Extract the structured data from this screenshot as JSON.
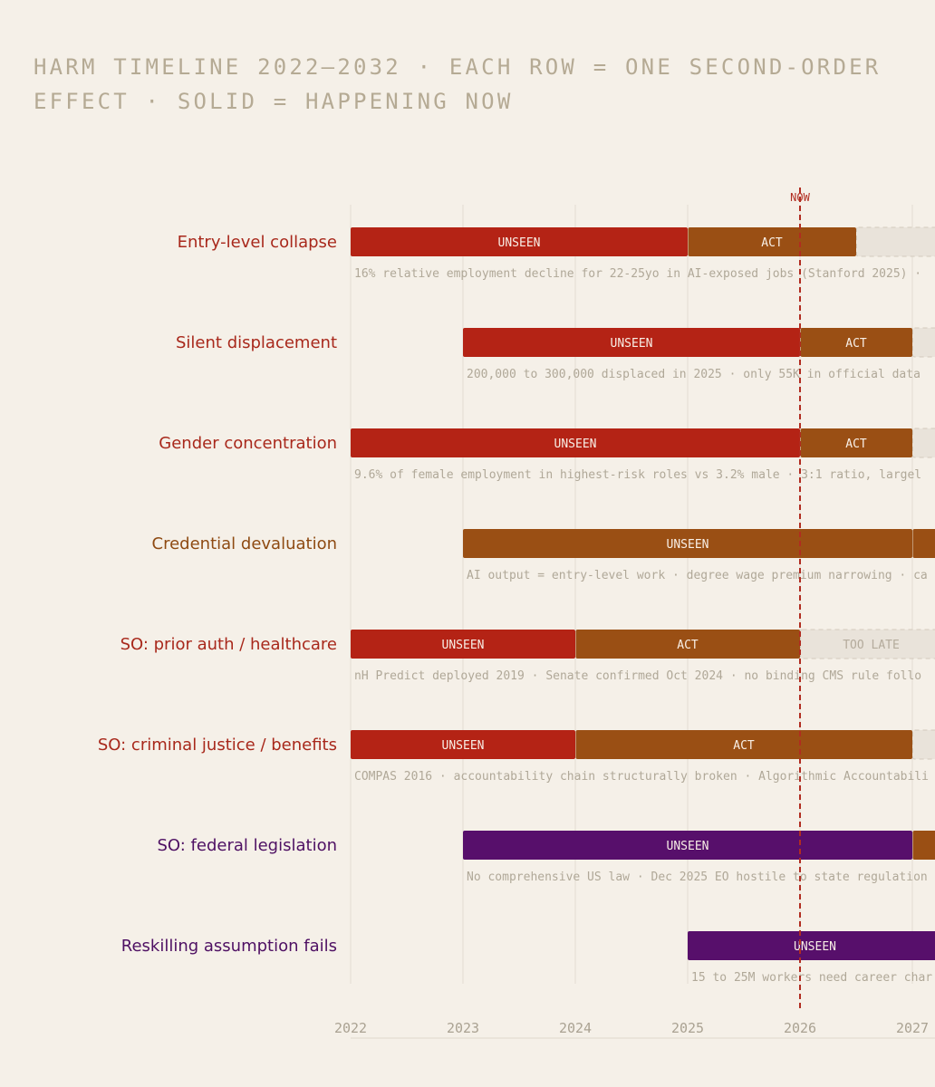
{
  "title_lines": [
    "HARM TIMELINE 2022–2032 · EACH ROW = ONE SECOND-ORDER",
    "EFFECT · SOLID = HAPPENING NOW"
  ],
  "colors": {
    "red": "#b42315",
    "orange": "#9a4f14",
    "purple": "#570f6b",
    "ghost": "#e9e3da",
    "ghost_border": "#d2cabd",
    "ghost_text": "#b4ab9c",
    "grid": "#e6e0d6",
    "now_line": "#b12c20"
  },
  "chart_data": {
    "type": "timeline",
    "x_ticks": [
      "2022",
      "2023",
      "2024",
      "2025",
      "2026",
      "2027"
    ],
    "xlim": [
      2022,
      2027.2
    ],
    "now_label": "NOW",
    "now_value": 2026,
    "rows": [
      {
        "label": "Entry-level collapse",
        "label_color": "#a8281b",
        "note": "16% relative employment decline for 22-25yo in AI-exposed jobs (Stanford 2025) ·",
        "segments": [
          {
            "label": "UNSEEN",
            "start": 2022,
            "end": 2025,
            "fill": "red"
          },
          {
            "label": "ACT",
            "start": 2025,
            "end": 2026.5,
            "fill": "orange"
          },
          {
            "label": "",
            "start": 2026.5,
            "end": 2027.3,
            "fill": "ghost"
          }
        ]
      },
      {
        "label": "Silent displacement",
        "label_color": "#a8281b",
        "note": "200,000 to 300,000 displaced in 2025 · only 55K in official data",
        "segments": [
          {
            "label": "UNSEEN",
            "start": 2023,
            "end": 2026,
            "fill": "red"
          },
          {
            "label": "ACT",
            "start": 2026,
            "end": 2027,
            "fill": "orange"
          },
          {
            "label": "",
            "start": 2027,
            "end": 2027.3,
            "fill": "ghost"
          }
        ]
      },
      {
        "label": "Gender concentration",
        "label_color": "#a8281b",
        "note": "9.6% of female employment in highest-risk roles vs 3.2% male · 3:1 ratio, largel",
        "segments": [
          {
            "label": "UNSEEN",
            "start": 2022,
            "end": 2026,
            "fill": "red"
          },
          {
            "label": "ACT",
            "start": 2026,
            "end": 2027,
            "fill": "orange"
          },
          {
            "label": "",
            "start": 2027,
            "end": 2027.3,
            "fill": "ghost"
          }
        ]
      },
      {
        "label": "Credential devaluation",
        "label_color": "#8e4a12",
        "note": "AI output = entry-level work · degree wage premium narrowing · ca",
        "segments": [
          {
            "label": "UNSEEN",
            "start": 2023,
            "end": 2027,
            "fill": "orange"
          },
          {
            "label": "",
            "start": 2027,
            "end": 2027.3,
            "fill": "orange"
          }
        ]
      },
      {
        "label": "SO: prior auth / healthcare",
        "label_color": "#a8281b",
        "note": "nH Predict deployed 2019 · Senate confirmed Oct 2024 · no binding CMS rule follo",
        "segments": [
          {
            "label": "UNSEEN",
            "start": 2022,
            "end": 2024,
            "fill": "red"
          },
          {
            "label": "ACT",
            "start": 2024,
            "end": 2026,
            "fill": "orange"
          },
          {
            "label": "TOO LATE",
            "start": 2026,
            "end": 2027.3,
            "fill": "ghost"
          }
        ]
      },
      {
        "label": "SO: criminal justice / benefits",
        "label_color": "#a8281b",
        "note": "COMPAS 2016 · accountability chain structurally broken · Algorithmic Accountabili",
        "segments": [
          {
            "label": "UNSEEN",
            "start": 2022,
            "end": 2024,
            "fill": "red"
          },
          {
            "label": "ACT",
            "start": 2024,
            "end": 2027,
            "fill": "orange"
          },
          {
            "label": "",
            "start": 2027,
            "end": 2027.3,
            "fill": "ghost"
          }
        ]
      },
      {
        "label": "SO: federal legislation",
        "label_color": "#4e1063",
        "note": "No comprehensive US law · Dec 2025 EO hostile to state regulation",
        "segments": [
          {
            "label": "UNSEEN",
            "start": 2023,
            "end": 2027,
            "fill": "purple"
          },
          {
            "label": "",
            "start": 2027,
            "end": 2027.3,
            "fill": "orange"
          }
        ]
      },
      {
        "label": "Reskilling assumption fails",
        "label_color": "#4e1063",
        "note": "15 to 25M workers need career char",
        "segments": [
          {
            "label": "UNSEEN",
            "start": 2025,
            "end": 2027.3,
            "fill": "purple"
          }
        ]
      }
    ]
  }
}
